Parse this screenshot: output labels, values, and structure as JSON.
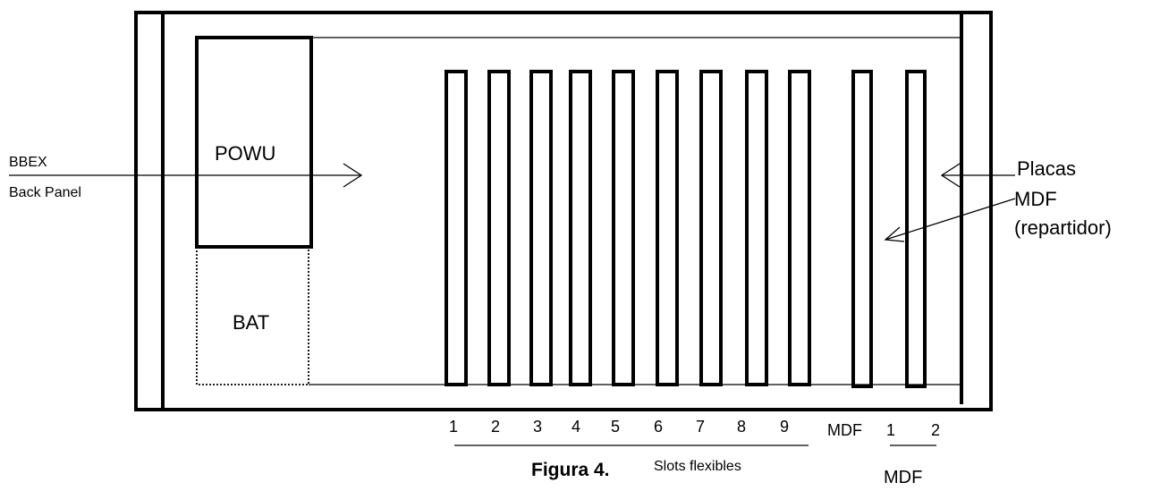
{
  "labels": {
    "powu": "POWU",
    "bat": "BAT",
    "bbex_line1": "BBEX",
    "bbex_line2": "Back Panel",
    "placas": "Placas",
    "mdf_line": "MDF",
    "repartidor": "(repartidor)"
  },
  "slots": {
    "flexible_numbers": [
      "1",
      "2",
      "3",
      "4",
      "5",
      "6",
      "7",
      "8",
      "9"
    ],
    "mdf_label": "MDF",
    "mdf_numbers": [
      "1",
      "2"
    ],
    "flexible_caption": "Slots flexibles",
    "mdf_caption": "MDF"
  },
  "figure": {
    "caption": "Figura 4."
  }
}
